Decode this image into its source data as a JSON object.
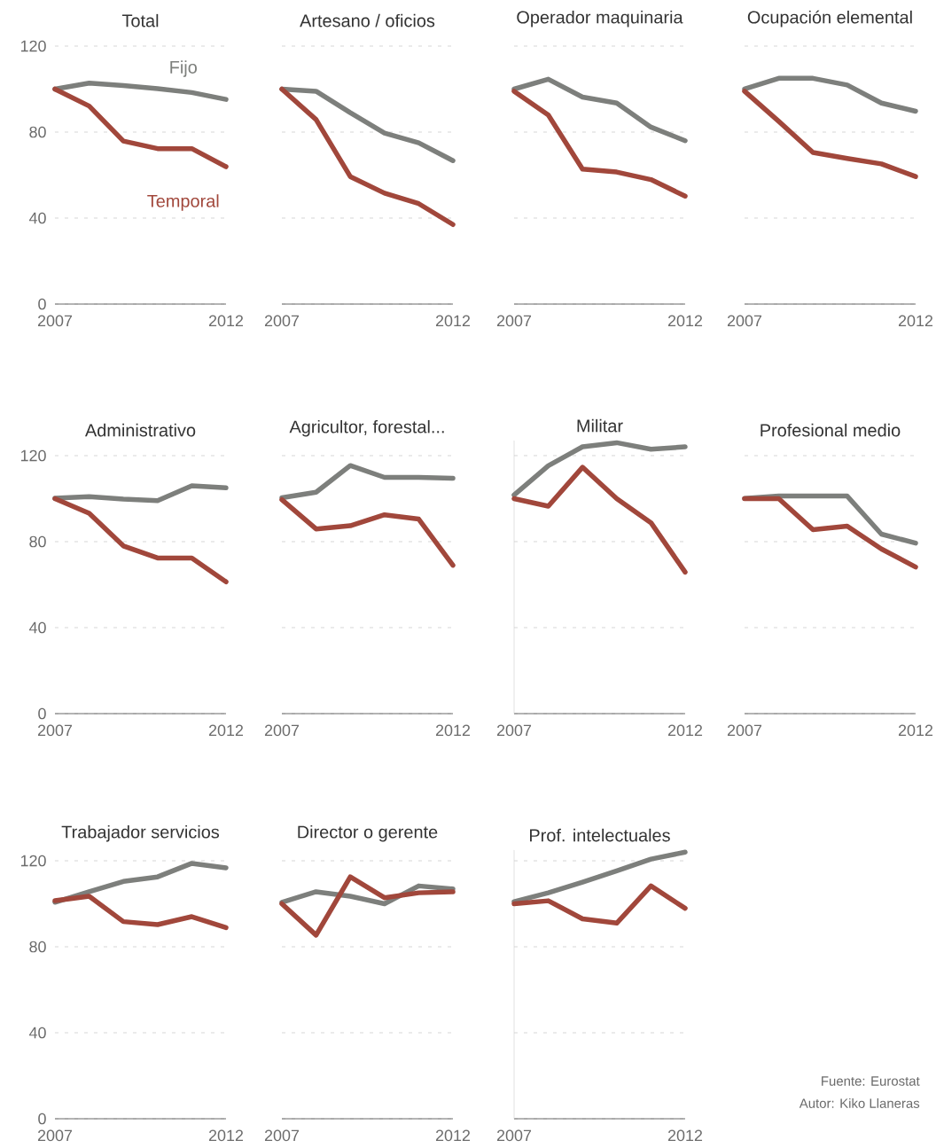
{
  "chart_data": [
    {
      "type": "line",
      "title": "Total",
      "x": [
        2007,
        2008,
        2009,
        2010,
        2011,
        2012
      ],
      "xlim": [
        2007,
        2012
      ],
      "xticks": [
        2007,
        2012
      ],
      "ylim": [
        0,
        120
      ],
      "yticks": [
        0,
        40,
        80,
        120
      ],
      "grid": "y",
      "series": [
        {
          "name": "Fijo",
          "color": "#7d7f7c",
          "values": [
            100,
            102.8,
            101.6,
            100.2,
            98.4,
            95.2
          ]
        },
        {
          "name": "Temporal",
          "color": "#a1473b",
          "values": [
            100,
            92.1,
            75.8,
            72.3,
            72.3,
            63.9
          ]
        }
      ]
    },
    {
      "type": "line",
      "title": "Artesano / oficios",
      "x": [
        2007,
        2008,
        2009,
        2010,
        2011,
        2012
      ],
      "xlim": [
        2007,
        2012
      ],
      "xticks": [
        2007,
        2012
      ],
      "ylim": [
        0,
        120
      ],
      "yticks": [
        0,
        40,
        80,
        120
      ],
      "grid": "y",
      "tick_labels": "x",
      "series": [
        {
          "color": "#7d7f7c",
          "values": [
            100,
            99,
            89,
            79.5,
            75,
            66.7
          ]
        },
        {
          "color": "#a1473b",
          "values": [
            100,
            85.8,
            59.3,
            51.6,
            46.7,
            37
          ]
        }
      ]
    },
    {
      "type": "line",
      "title": "Operador maquinaria",
      "x": [
        2007,
        2008,
        2009,
        2010,
        2011,
        2012
      ],
      "xlim": [
        2007,
        2012
      ],
      "xticks": [
        2007,
        2012
      ],
      "ylim": [
        0,
        120
      ],
      "yticks": [
        0,
        40,
        80,
        120
      ],
      "grid": "y",
      "tick_labels": "x",
      "series": [
        {
          "color": "#7d7f7c",
          "values": [
            100,
            104.6,
            96.3,
            93.5,
            82.3,
            76
          ]
        },
        {
          "color": "#a1473b",
          "values": [
            99,
            87.9,
            62.8,
            61.4,
            57.9,
            50.2
          ]
        }
      ]
    },
    {
      "type": "line",
      "title": "Ocupación elemental",
      "x": [
        2007,
        2008,
        2009,
        2010,
        2011,
        2012
      ],
      "xlim": [
        2007,
        2012
      ],
      "xticks": [
        2007,
        2012
      ],
      "ylim": [
        0,
        120
      ],
      "yticks": [
        0,
        40,
        80,
        120
      ],
      "grid": "y",
      "tick_labels": "x",
      "series": [
        {
          "color": "#7d7f7c",
          "values": [
            100,
            105,
            105,
            101.9,
            93.5,
            89.7
          ]
        },
        {
          "color": "#a1473b",
          "values": [
            99,
            85,
            70.5,
            67.7,
            65.2,
            59.3
          ]
        }
      ]
    },
    {
      "type": "line",
      "title": "Administrativo",
      "x": [
        2007,
        2008,
        2009,
        2010,
        2011,
        2012
      ],
      "xlim": [
        2007,
        2012
      ],
      "xticks": [
        2007,
        2012
      ],
      "ylim": [
        0,
        120
      ],
      "yticks": [
        0,
        40,
        80,
        120
      ],
      "grid": "y",
      "series": [
        {
          "color": "#7d7f7c",
          "values": [
            100.2,
            100.9,
            99.8,
            99.1,
            106,
            105
          ]
        },
        {
          "color": "#a1473b",
          "values": [
            100,
            93.2,
            78,
            72.4,
            72.4,
            61.3
          ]
        }
      ]
    },
    {
      "type": "line",
      "title": "Agricultor, forestal...",
      "x": [
        2007,
        2008,
        2009,
        2010,
        2011,
        2012
      ],
      "xlim": [
        2007,
        2012
      ],
      "xticks": [
        2007,
        2012
      ],
      "ylim": [
        0,
        120
      ],
      "yticks": [
        0,
        40,
        80,
        120
      ],
      "grid": "y",
      "tick_labels": "x",
      "series": [
        {
          "color": "#7d7f7c",
          "values": [
            100.4,
            103,
            115.4,
            109.9,
            109.9,
            109.5
          ]
        },
        {
          "color": "#a1473b",
          "values": [
            99.5,
            85.9,
            87.4,
            92.5,
            90.5,
            69
          ]
        }
      ]
    },
    {
      "type": "line",
      "title": "Militar",
      "x": [
        2007,
        2008,
        2009,
        2010,
        2011,
        2012
      ],
      "xlim": [
        2007,
        2012
      ],
      "xticks": [
        2007,
        2012
      ],
      "ylim": [
        0,
        127
      ],
      "yticks": [
        0,
        40,
        80,
        120
      ],
      "grid": "y",
      "tick_labels": "x",
      "series": [
        {
          "color": "#7d7f7c",
          "values": [
            101.7,
            115.3,
            124.1,
            126,
            123,
            124.1
          ]
        },
        {
          "color": "#a1473b",
          "values": [
            100,
            96.5,
            114.6,
            100,
            88.8,
            65.8
          ]
        }
      ]
    },
    {
      "type": "line",
      "title": "Profesional medio",
      "x": [
        2007,
        2008,
        2009,
        2010,
        2011,
        2012
      ],
      "xlim": [
        2007,
        2012
      ],
      "xticks": [
        2007,
        2012
      ],
      "ylim": [
        0,
        120
      ],
      "yticks": [
        0,
        40,
        80,
        120
      ],
      "grid": "y",
      "tick_labels": "x",
      "series": [
        {
          "color": "#7d7f7c",
          "values": [
            100.1,
            101.2,
            101.2,
            101.2,
            83.5,
            79.3
          ]
        },
        {
          "color": "#a1473b",
          "values": [
            100,
            100,
            85.6,
            87.2,
            76.6,
            68.2
          ]
        }
      ]
    },
    {
      "type": "line",
      "title": "Trabajador servicios",
      "x": [
        2007,
        2008,
        2009,
        2010,
        2011,
        2012
      ],
      "xlim": [
        2007,
        2012
      ],
      "xticks": [
        2007,
        2012
      ],
      "ylim": [
        0,
        120
      ],
      "yticks": [
        0,
        40,
        80,
        120
      ],
      "grid": "y",
      "series": [
        {
          "color": "#7d7f7c",
          "values": [
            100.7,
            105.6,
            110.4,
            112.5,
            118.8,
            116.7
          ]
        },
        {
          "color": "#a1473b",
          "values": [
            101.4,
            103.5,
            91.7,
            90.3,
            94,
            88.9
          ]
        }
      ]
    },
    {
      "type": "line",
      "title": "Director o gerente",
      "x": [
        2007,
        2008,
        2009,
        2010,
        2011,
        2012
      ],
      "xlim": [
        2007,
        2012
      ],
      "xticks": [
        2007,
        2012
      ],
      "ylim": [
        0,
        120
      ],
      "yticks": [
        0,
        40,
        80,
        120
      ],
      "grid": "y",
      "tick_labels": "x",
      "series": [
        {
          "color": "#7d7f7c",
          "values": [
            100.7,
            105.6,
            103.5,
            100,
            108.3,
            106.9
          ]
        },
        {
          "color": "#a1473b",
          "values": [
            100,
            85.4,
            112.5,
            102.8,
            105.1,
            105.6
          ]
        }
      ]
    },
    {
      "type": "line",
      "title": "Prof. intelectuales",
      "x": [
        2007,
        2008,
        2009,
        2010,
        2011,
        2012
      ],
      "xlim": [
        2007,
        2012
      ],
      "xticks": [
        2007,
        2012
      ],
      "ylim": [
        0,
        125
      ],
      "yticks": [
        0,
        40,
        80,
        120
      ],
      "grid": "y",
      "tick_labels": "x",
      "annotations": [
        "Fuente: Eurostat",
        "Autor: Kiko Llaneras"
      ],
      "series": [
        {
          "color": "#7d7f7c",
          "values": [
            101,
            105.1,
            110.1,
            115.3,
            120.8,
            124
          ]
        },
        {
          "color": "#a1473b",
          "values": [
            100,
            101.4,
            93,
            91,
            108.3,
            97.9
          ]
        }
      ]
    }
  ]
}
